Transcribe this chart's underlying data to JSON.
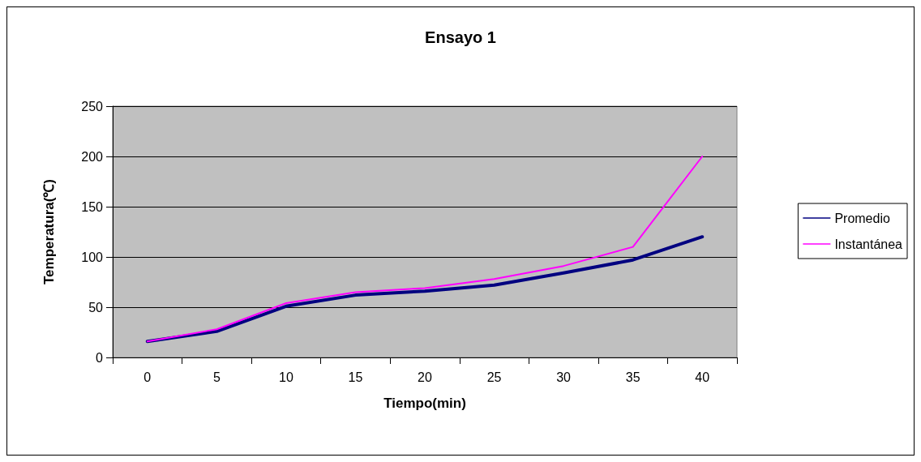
{
  "chart_data": {
    "type": "line",
    "title": "Ensayo 1",
    "xlabel": "Tiempo(min)",
    "ylabel": "Temperatura(℃)",
    "categories": [
      "0",
      "5",
      "10",
      "15",
      "20",
      "25",
      "30",
      "35",
      "40"
    ],
    "series": [
      {
        "name": "Promedio",
        "color": "#000080",
        "values": [
          16,
          26,
          51,
          62,
          66,
          72,
          84,
          97,
          120
        ]
      },
      {
        "name": "Instantánea",
        "color": "#ff00ff",
        "values": [
          16,
          28,
          54,
          65,
          69,
          78,
          91,
          110,
          200
        ]
      }
    ],
    "ylim": [
      0,
      250
    ],
    "yticks": [
      0,
      50,
      100,
      150,
      200,
      250
    ],
    "grid": "y",
    "legend": "right",
    "marker": "none",
    "line_style": "solid"
  }
}
